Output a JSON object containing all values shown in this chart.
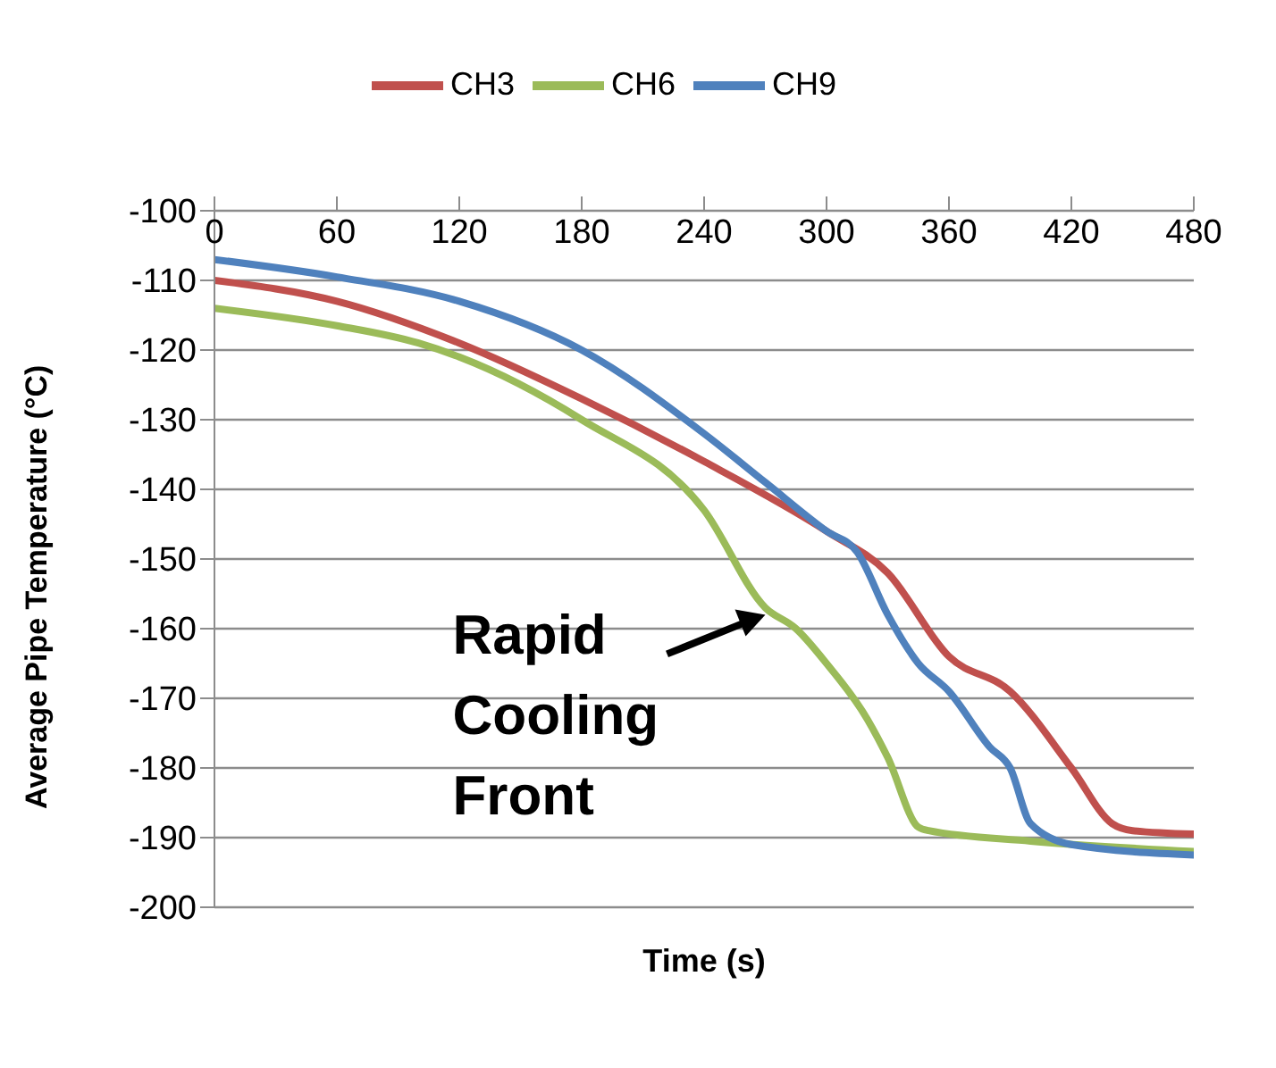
{
  "chart_data": {
    "type": "line",
    "xlabel": "Time (s)",
    "ylabel": "Average Pipe Temperature (°C)",
    "xlim": [
      0,
      480
    ],
    "xticks": [
      0,
      60,
      120,
      180,
      240,
      300,
      360,
      420,
      480
    ],
    "ylim": [
      -200,
      -100
    ],
    "yticks": [
      -200,
      -190,
      -180,
      -170,
      -160,
      -150,
      -140,
      -130,
      -120,
      -110,
      -100
    ],
    "grid": "y",
    "legend": "top",
    "annotations": [
      {
        "text": "Rapid Cooling Front",
        "x": 270,
        "y": -158
      }
    ],
    "series": [
      {
        "name": "CH3",
        "color": "#c0504d",
        "x": [
          0,
          60,
          120,
          180,
          240,
          300,
          330,
          360,
          390,
          420,
          440,
          450,
          480
        ],
        "values": [
          -110,
          -113,
          -119,
          -127,
          -136,
          -146,
          -152,
          -164,
          -169,
          -180,
          -188,
          -189,
          -189.5
        ]
      },
      {
        "name": "CH6",
        "color": "#9bbb59",
        "x": [
          0,
          60,
          100,
          120,
          180,
          240,
          270,
          285,
          300,
          320,
          330,
          345,
          350,
          400,
          480
        ],
        "values": [
          -114,
          -116.5,
          -119,
          -121,
          -130,
          -143,
          -157,
          -160,
          -165,
          -173,
          -178.5,
          -188.5,
          -189,
          -190.5,
          -192
        ]
      },
      {
        "name": "CH9",
        "color": "#4f81bd",
        "x": [
          0,
          60,
          120,
          180,
          240,
          270,
          300,
          315,
          330,
          345,
          360,
          380,
          390,
          400,
          420,
          480
        ],
        "values": [
          -107,
          -109.5,
          -113,
          -120,
          -132,
          -139,
          -146,
          -149,
          -158,
          -165,
          -169,
          -177,
          -180,
          -188,
          -191,
          -192.5
        ]
      }
    ]
  }
}
